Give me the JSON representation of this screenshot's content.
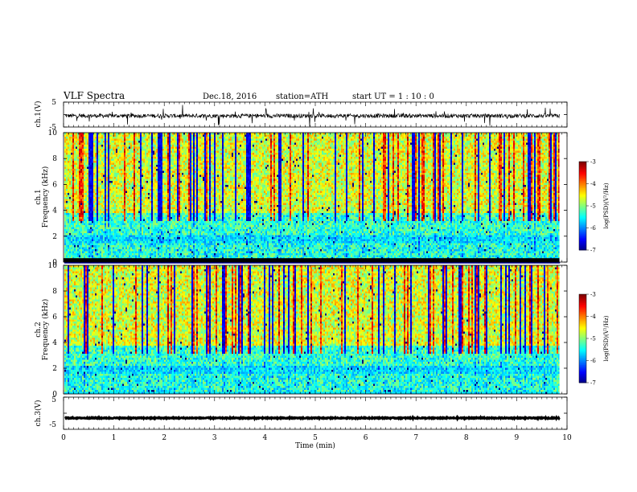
{
  "header": {
    "title": "VLF  Spectra",
    "date": "Dec.18, 2016",
    "station": "station=ATH",
    "start_ut": "start  UT  =    1  : 10 : 0"
  },
  "chart_data": [
    {
      "type": "line",
      "panel": "ch1-waveform",
      "ylabel": "ch.1(V)",
      "ylim": [
        -5,
        5
      ],
      "yticks": [
        "5",
        "-5"
      ],
      "xlim": [
        0,
        10
      ],
      "series": [
        {
          "baseline": -0.5,
          "noise_amp": 0.8,
          "spike_amp": 4
        }
      ]
    },
    {
      "type": "heatmap",
      "panel": "ch1-spectrogram",
      "ylabel": "Frequency  (kHz)",
      "channel_label": "ch.1",
      "ylim": [
        0,
        10
      ],
      "yticks": [
        "0",
        "2",
        "4",
        "6",
        "8",
        "10"
      ],
      "xlim": [
        0,
        10
      ],
      "data_end_min": 9.85,
      "colorbar": {
        "label": "log(PSD)(V²/Hz)",
        "range": [
          -7,
          -3
        ],
        "ticks": [
          "-3",
          "-4",
          "-5",
          "-6",
          "-7"
        ]
      }
    },
    {
      "type": "heatmap",
      "panel": "ch2-spectrogram",
      "ylabel": "Frequency  (kHz)",
      "channel_label": "ch.2",
      "ylim": [
        0,
        10
      ],
      "yticks": [
        "0",
        "2",
        "4",
        "6",
        "8",
        "10"
      ],
      "xlim": [
        0,
        10
      ],
      "data_end_min": 9.85,
      "colorbar": {
        "label": "log(PSD)(V²/Hz)",
        "range": [
          -7,
          -3
        ],
        "ticks": [
          "-3",
          "-4",
          "-5",
          "-6",
          "-7"
        ]
      }
    },
    {
      "type": "line",
      "panel": "ch3-waveform",
      "ylabel": "ch.3(V)",
      "ylim": [
        -5,
        5
      ],
      "yticks": [
        "5",
        "-5"
      ],
      "xlim": [
        0,
        10
      ],
      "series": [
        {
          "baseline": -1.5,
          "noise_amp": 0.15,
          "spike_amp": 0
        }
      ]
    }
  ],
  "xaxis": {
    "label": "Time  (min)",
    "ticks": [
      "0",
      "1",
      "2",
      "3",
      "4",
      "5",
      "6",
      "7",
      "8",
      "9",
      "10"
    ]
  }
}
